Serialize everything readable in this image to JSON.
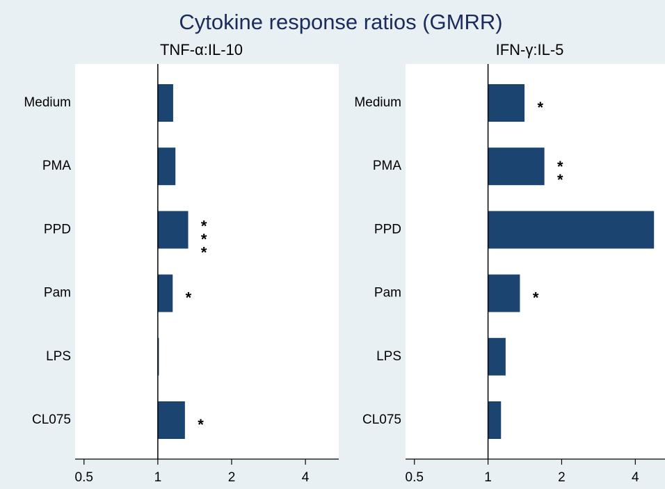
{
  "title": "Cytokine response ratios (GMRR)",
  "chart_data": [
    {
      "type": "bar",
      "orientation": "horizontal",
      "title": "TNF-α:IL-10",
      "categories": [
        "Medium",
        "PMA",
        "PPD",
        "Pam",
        "LPS",
        "CL075"
      ],
      "values": [
        1.155,
        1.18,
        1.33,
        1.15,
        1.01,
        1.29
      ],
      "annotations": [
        null,
        null,
        "***",
        "*",
        null,
        "*"
      ],
      "color": "#1c4470",
      "base": 1,
      "xscale": "log",
      "xlim": [
        0.46,
        5.47
      ],
      "xticks": [
        0.5,
        1,
        2,
        4
      ]
    },
    {
      "type": "bar",
      "orientation": "horizontal",
      "title": "IFN-γ:IL-5",
      "categories": [
        "Medium",
        "PMA",
        "PPD",
        "Pam",
        "LPS",
        "CL075"
      ],
      "values": [
        1.41,
        1.7,
        4.77,
        1.35,
        1.18,
        1.13
      ],
      "annotations": [
        "*",
        "**",
        "***",
        "*",
        null,
        null
      ],
      "color": "#1c4470",
      "base": 1,
      "xscale": "log",
      "xlim": [
        0.46,
        5.29
      ],
      "xticks": [
        0.5,
        1,
        2,
        4
      ]
    }
  ]
}
